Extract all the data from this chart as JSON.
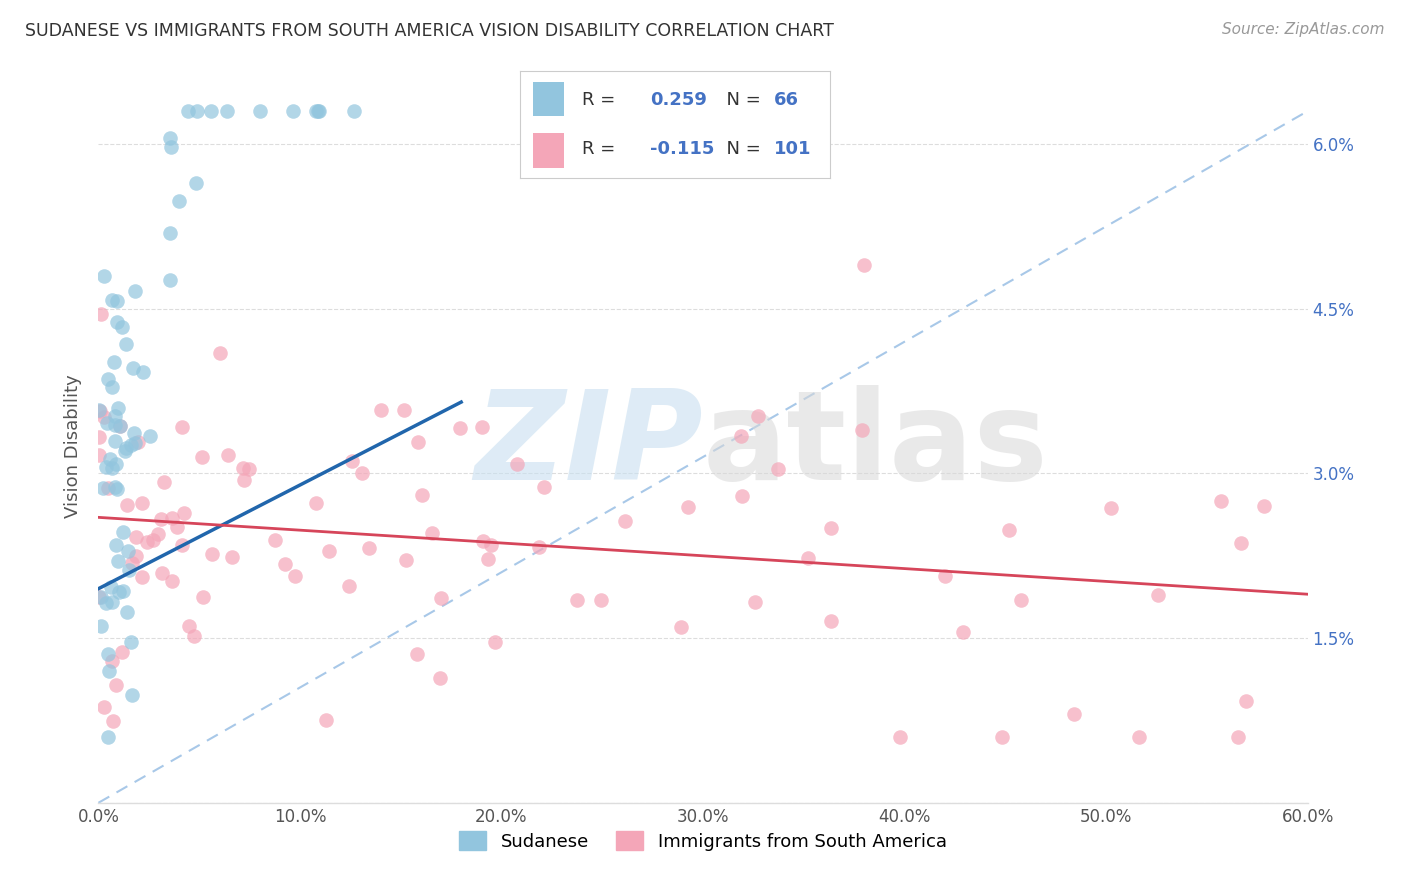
{
  "title": "SUDANESE VS IMMIGRANTS FROM SOUTH AMERICA VISION DISABILITY CORRELATION CHART",
  "source": "Source: ZipAtlas.com",
  "ylabel": "Vision Disability",
  "xlim": [
    0.0,
    0.6
  ],
  "ylim": [
    0.0,
    0.065
  ],
  "y_ticks": [
    0.0,
    0.015,
    0.03,
    0.045,
    0.06
  ],
  "y_tick_labels_right": [
    "",
    "1.5%",
    "3.0%",
    "4.5%",
    "6.0%"
  ],
  "x_ticks": [
    0.0,
    0.1,
    0.2,
    0.3,
    0.4,
    0.5,
    0.6
  ],
  "x_tick_labels": [
    "0.0%",
    "10.0%",
    "20.0%",
    "30.0%",
    "40.0%",
    "50.0%",
    "60.0%"
  ],
  "blue_R": 0.259,
  "blue_N": 66,
  "pink_R": -0.115,
  "pink_N": 101,
  "legend1_label": "Sudanese",
  "legend2_label": "Immigrants from South America",
  "blue_color": "#92c5de",
  "pink_color": "#f4a6b8",
  "blue_line_color": "#2166ac",
  "pink_line_color": "#d6455a",
  "diag_color": "#a8c8e8",
  "watermark_zip_color": "#c8dff0",
  "watermark_atlas_color": "#d0d0d0",
  "background_color": "#ffffff",
  "tick_color": "#555555",
  "right_tick_color": "#4472c4",
  "grid_color": "#dddddd",
  "title_color": "#333333",
  "source_color": "#999999",
  "blue_line_x": [
    0.0,
    0.18
  ],
  "blue_line_y": [
    0.0195,
    0.0365
  ],
  "pink_line_x": [
    0.0,
    0.6
  ],
  "pink_line_y": [
    0.026,
    0.019
  ]
}
